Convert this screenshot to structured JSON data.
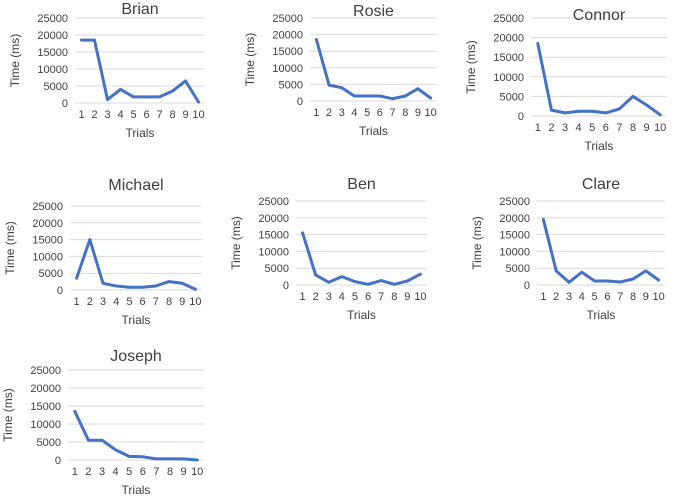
{
  "chart_data": [
    {
      "type": "line",
      "title": "Brian",
      "xlabel": "Trials",
      "ylabel": "Time (ms)",
      "x": [
        1,
        2,
        3,
        4,
        5,
        6,
        7,
        8,
        9,
        10
      ],
      "ylim": [
        0,
        25000
      ],
      "yticks": [
        0,
        5000,
        10000,
        15000,
        20000,
        25000
      ],
      "grid": true,
      "color": "#4472c4",
      "series": [
        {
          "values": [
            18500,
            18500,
            1000,
            4000,
            1800,
            1800,
            1800,
            3500,
            6500,
            300
          ]
        }
      ]
    },
    {
      "type": "line",
      "title": "Rosie",
      "xlabel": "Trials",
      "ylabel": "Time (ms)",
      "x": [
        1,
        2,
        3,
        4,
        5,
        6,
        7,
        8,
        9,
        10
      ],
      "ylim": [
        0,
        25000
      ],
      "yticks": [
        0,
        5000,
        10000,
        15000,
        20000,
        25000
      ],
      "grid": true,
      "color": "#4472c4",
      "series": [
        {
          "values": [
            18500,
            4800,
            4000,
            1500,
            1500,
            1500,
            700,
            1500,
            3700,
            900
          ]
        }
      ]
    },
    {
      "type": "line",
      "title": "Connor",
      "xlabel": "Trials",
      "ylabel": "Time (ms)",
      "x": [
        1,
        2,
        3,
        4,
        5,
        6,
        7,
        8,
        9,
        10
      ],
      "ylim": [
        0,
        25000
      ],
      "yticks": [
        0,
        5000,
        10000,
        15000,
        20000,
        25000
      ],
      "grid": true,
      "color": "#4472c4",
      "series": [
        {
          "values": [
            18500,
            1500,
            800,
            1200,
            1200,
            800,
            1800,
            5000,
            2800,
            300
          ]
        }
      ]
    },
    {
      "type": "line",
      "title": "Michael",
      "xlabel": "Trials",
      "ylabel": "Time (ms)",
      "x": [
        1,
        2,
        3,
        4,
        5,
        6,
        7,
        8,
        9,
        10
      ],
      "ylim": [
        0,
        25000
      ],
      "yticks": [
        0,
        5000,
        10000,
        15000,
        20000,
        25000
      ],
      "grid": true,
      "color": "#4472c4",
      "series": [
        {
          "values": [
            3500,
            15000,
            2000,
            1200,
            800,
            800,
            1200,
            2500,
            2000,
            200
          ]
        }
      ]
    },
    {
      "type": "line",
      "title": "Ben",
      "xlabel": "Trials",
      "ylabel": "Time (ms)",
      "x": [
        1,
        2,
        3,
        4,
        5,
        6,
        7,
        8,
        9,
        10
      ],
      "ylim": [
        0,
        25000
      ],
      "yticks": [
        0,
        5000,
        10000,
        15000,
        20000,
        25000
      ],
      "grid": true,
      "color": "#4472c4",
      "series": [
        {
          "values": [
            15500,
            3000,
            800,
            2500,
            1000,
            200,
            1300,
            200,
            1200,
            3200
          ]
        }
      ]
    },
    {
      "type": "line",
      "title": "Clare",
      "xlabel": "Trials",
      "ylabel": "Time (ms)",
      "x": [
        1,
        2,
        3,
        4,
        5,
        6,
        7,
        8,
        9,
        10
      ],
      "ylim": [
        0,
        25000
      ],
      "yticks": [
        0,
        5000,
        10000,
        15000,
        20000,
        25000
      ],
      "grid": true,
      "color": "#4472c4",
      "series": [
        {
          "values": [
            19500,
            4200,
            800,
            3800,
            1200,
            1200,
            900,
            1800,
            4200,
            1500
          ]
        }
      ]
    },
    {
      "type": "line",
      "title": "Joseph",
      "xlabel": "Trials",
      "ylabel": "Time (ms)",
      "x": [
        1,
        2,
        3,
        4,
        5,
        6,
        7,
        8,
        9,
        10
      ],
      "ylim": [
        0,
        25000
      ],
      "yticks": [
        0,
        5000,
        10000,
        15000,
        20000,
        25000
      ],
      "grid": true,
      "color": "#4472c4",
      "series": [
        {
          "values": [
            13500,
            5500,
            5500,
            2800,
            1000,
            900,
            300,
            300,
            300,
            0
          ]
        }
      ]
    }
  ]
}
